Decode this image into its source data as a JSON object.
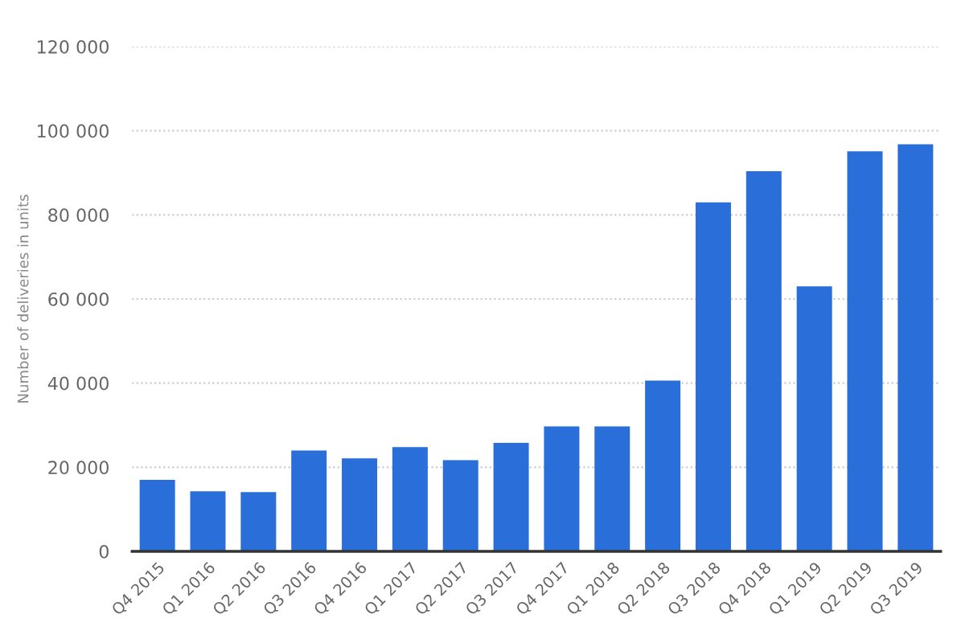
{
  "chart_data": {
    "type": "bar",
    "ylabel": "Number of deliveries in units",
    "categories": [
      "Q4 2015",
      "Q1 2016",
      "Q2 2016",
      "Q3 2016",
      "Q4 2016",
      "Q1 2017",
      "Q2 2017",
      "Q3 2017",
      "Q4 2017",
      "Q1 2018",
      "Q2 2018",
      "Q3 2018",
      "Q4 2018",
      "Q1 2019",
      "Q2 2019",
      "Q3 2019"
    ],
    "values": [
      17000,
      14300,
      14100,
      24000,
      22100,
      24800,
      21700,
      25800,
      29700,
      29700,
      40600,
      83000,
      90400,
      63000,
      95100,
      96800
    ],
    "color": "#2a6fd9",
    "ylim": [
      0,
      120000
    ],
    "yticks": [
      0,
      {
        "value": 20000,
        "label": "20 000"
      },
      {
        "value": 40000,
        "label": "40 000"
      },
      {
        "value": 60000,
        "label": "60 000"
      },
      {
        "value": 80000,
        "label": "80 000"
      },
      {
        "value": 100000,
        "label": "100 000"
      },
      {
        "value": 120000,
        "label": "120 000"
      }
    ],
    "grid": "y"
  }
}
